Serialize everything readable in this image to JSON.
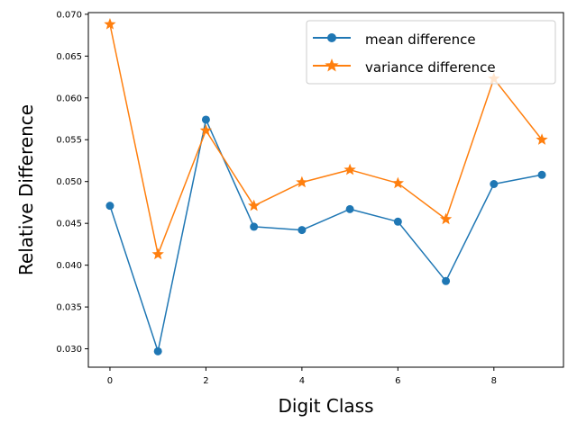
{
  "chart_data": {
    "type": "line",
    "xlabel": "Digit Class",
    "ylabel": "Relative Difference",
    "xlim": [
      -0.45,
      9.45
    ],
    "ylim": [
      0.0278,
      0.0702
    ],
    "x_ticks": [
      0,
      2,
      4,
      6,
      8
    ],
    "x_tick_labels": [
      "0",
      "2",
      "4",
      "6",
      "8"
    ],
    "y_ticks": [
      0.03,
      0.035,
      0.04,
      0.045,
      0.05,
      0.055,
      0.06,
      0.065,
      0.07
    ],
    "y_tick_labels": [
      "0.030",
      "0.035",
      "0.040",
      "0.045",
      "0.050",
      "0.055",
      "0.060",
      "0.065",
      "0.070"
    ],
    "grid": false,
    "legend_position": "top-right",
    "x": [
      0,
      1,
      2,
      3,
      4,
      5,
      6,
      7,
      8,
      9
    ],
    "series": [
      {
        "name": "mean difference",
        "color": "#1f77b4",
        "marker": "circle",
        "values": [
          0.0471,
          0.0297,
          0.0574,
          0.0446,
          0.0442,
          0.0467,
          0.0452,
          0.0381,
          0.0497,
          0.0508
        ]
      },
      {
        "name": "variance difference",
        "color": "#ff7f0e",
        "marker": "star",
        "values": [
          0.0688,
          0.0413,
          0.0561,
          0.0471,
          0.0499,
          0.0514,
          0.0498,
          0.0455,
          0.0623,
          0.055
        ]
      }
    ]
  }
}
